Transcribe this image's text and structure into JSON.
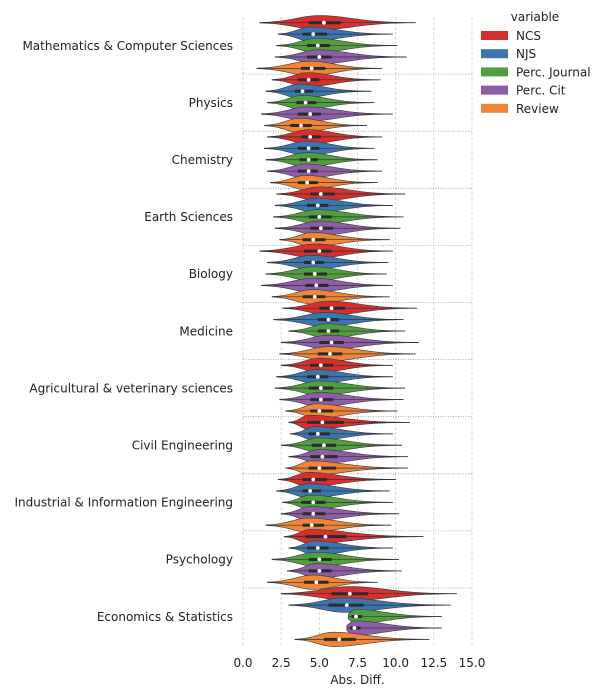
{
  "chart_data": {
    "type": "violin",
    "xlabel": "Abs. Diff.",
    "xlim": [
      0,
      15
    ],
    "xticks": [
      "0.0",
      "2.5",
      "5.0",
      "7.5",
      "10.0",
      "12.5",
      "15.0"
    ],
    "grid": "vertical dashed",
    "legend": {
      "title": "variable",
      "placement": "top-right",
      "entries": [
        "NCS",
        "NJS",
        "Perc. Journal",
        "Perc. Cit",
        "Review"
      ]
    },
    "series_colors": [
      "#d62f2f",
      "#3b76af",
      "#519e3e",
      "#8d5da7",
      "#ef8636"
    ],
    "categories": [
      "Mathematics & Computer Sciences",
      "Physics",
      "Chemistry",
      "Earth Sciences",
      "Biology",
      "Medicine",
      "Agricultural & veterinary sciences",
      "Civil Engineering",
      "Industrial & Information Engineering",
      "Psychology",
      "Economics & Statistics"
    ],
    "series": [
      {
        "name": "NCS",
        "values": [
          {
            "min": 1.1,
            "q1": 4.3,
            "median": 5.3,
            "q3": 6.4,
            "max": 11.3,
            "peak": 5.0
          },
          {
            "min": 1.9,
            "q1": 3.6,
            "median": 4.3,
            "q3": 5.0,
            "max": 9.0,
            "peak": 4.2
          },
          {
            "min": 1.6,
            "q1": 3.8,
            "median": 4.4,
            "q3": 5.1,
            "max": 9.1,
            "peak": 4.3
          },
          {
            "min": 2.2,
            "q1": 4.4,
            "median": 5.1,
            "q3": 6.0,
            "max": 10.6,
            "peak": 5.0
          },
          {
            "min": 1.1,
            "q1": 4.0,
            "median": 5.0,
            "q3": 5.8,
            "max": 9.8,
            "peak": 4.8
          },
          {
            "min": 2.6,
            "q1": 5.0,
            "median": 5.8,
            "q3": 6.7,
            "max": 11.4,
            "peak": 5.6
          },
          {
            "min": 2.5,
            "q1": 4.4,
            "median": 5.1,
            "q3": 5.9,
            "max": 9.8,
            "peak": 5.0
          },
          {
            "min": 3.0,
            "q1": 4.2,
            "median": 5.2,
            "q3": 6.6,
            "max": 10.9,
            "peak": 4.3
          },
          {
            "min": 2.3,
            "q1": 3.9,
            "median": 4.6,
            "q3": 5.5,
            "max": 10.0,
            "peak": 4.3
          },
          {
            "min": 2.7,
            "q1": 4.1,
            "median": 5.4,
            "q3": 6.8,
            "max": 11.8,
            "peak": 4.4
          },
          {
            "min": 2.5,
            "q1": 5.8,
            "median": 7.0,
            "q3": 8.2,
            "max": 14.0,
            "peak": 7.0
          }
        ]
      },
      {
        "name": "NJS",
        "values": [
          {
            "min": 2.3,
            "q1": 3.9,
            "median": 4.6,
            "q3": 5.5,
            "max": 9.8,
            "peak": 4.4
          },
          {
            "min": 1.5,
            "q1": 3.4,
            "median": 3.9,
            "q3": 4.6,
            "max": 8.4,
            "peak": 3.7
          },
          {
            "min": 1.4,
            "q1": 3.6,
            "median": 4.3,
            "q3": 5.0,
            "max": 8.6,
            "peak": 4.2
          },
          {
            "min": 2.1,
            "q1": 4.2,
            "median": 4.9,
            "q3": 5.6,
            "max": 9.8,
            "peak": 4.8
          },
          {
            "min": 1.6,
            "q1": 4.0,
            "median": 4.6,
            "q3": 5.3,
            "max": 9.5,
            "peak": 4.5
          },
          {
            "min": 2.0,
            "q1": 4.9,
            "median": 5.6,
            "q3": 6.3,
            "max": 10.5,
            "peak": 5.4
          },
          {
            "min": 2.2,
            "q1": 4.2,
            "median": 4.9,
            "q3": 5.6,
            "max": 9.8,
            "peak": 4.8
          },
          {
            "min": 3.1,
            "q1": 4.3,
            "median": 4.9,
            "q3": 5.7,
            "max": 9.8,
            "peak": 4.7
          },
          {
            "min": 2.2,
            "q1": 3.9,
            "median": 4.4,
            "q3": 5.1,
            "max": 9.6,
            "peak": 4.3
          },
          {
            "min": 3.0,
            "q1": 4.2,
            "median": 4.9,
            "q3": 5.6,
            "max": 9.8,
            "peak": 4.7
          },
          {
            "min": 3.0,
            "q1": 5.6,
            "median": 6.8,
            "q3": 7.9,
            "max": 13.6,
            "peak": 6.6
          }
        ]
      },
      {
        "name": "Perc. Journal",
        "values": [
          {
            "min": 2.2,
            "q1": 4.2,
            "median": 4.9,
            "q3": 5.7,
            "max": 10.1,
            "peak": 4.8
          },
          {
            "min": 1.6,
            "q1": 3.5,
            "median": 4.1,
            "q3": 4.8,
            "max": 8.6,
            "peak": 3.9
          },
          {
            "min": 1.5,
            "q1": 3.7,
            "median": 4.3,
            "q3": 4.9,
            "max": 8.8,
            "peak": 4.2
          },
          {
            "min": 2.0,
            "q1": 4.3,
            "median": 5.0,
            "q3": 5.8,
            "max": 10.5,
            "peak": 4.9
          },
          {
            "min": 1.5,
            "q1": 4.0,
            "median": 4.7,
            "q3": 5.5,
            "max": 9.4,
            "peak": 4.6
          },
          {
            "min": 3.0,
            "q1": 4.9,
            "median": 5.6,
            "q3": 6.3,
            "max": 10.6,
            "peak": 5.5
          },
          {
            "min": 2.1,
            "q1": 4.3,
            "median": 5.1,
            "q3": 5.9,
            "max": 10.6,
            "peak": 5.0
          },
          {
            "min": 2.5,
            "q1": 4.5,
            "median": 5.3,
            "q3": 6.1,
            "max": 10.4,
            "peak": 5.0
          },
          {
            "min": 2.6,
            "q1": 3.8,
            "median": 4.6,
            "q3": 5.4,
            "max": 9.8,
            "peak": 4.4
          },
          {
            "min": 1.9,
            "q1": 4.3,
            "median": 5.0,
            "q3": 5.8,
            "max": 10.2,
            "peak": 4.8
          },
          {
            "min": 6.9,
            "q1": 7.1,
            "median": 7.4,
            "q3": 7.8,
            "max": 13.0,
            "peak": 7.4
          }
        ]
      },
      {
        "name": "Perc. Cit",
        "values": [
          {
            "min": 2.1,
            "q1": 4.2,
            "median": 5.0,
            "q3": 5.8,
            "max": 10.7,
            "peak": 4.9
          },
          {
            "min": 1.2,
            "q1": 3.6,
            "median": 4.4,
            "q3": 5.1,
            "max": 9.8,
            "peak": 4.2
          },
          {
            "min": 1.6,
            "q1": 3.6,
            "median": 4.3,
            "q3": 4.9,
            "max": 9.1,
            "peak": 4.1
          },
          {
            "min": 2.1,
            "q1": 4.4,
            "median": 5.1,
            "q3": 5.9,
            "max": 10.3,
            "peak": 5.0
          },
          {
            "min": 1.2,
            "q1": 4.1,
            "median": 4.8,
            "q3": 5.6,
            "max": 9.8,
            "peak": 4.6
          },
          {
            "min": 2.5,
            "q1": 5.0,
            "median": 5.8,
            "q3": 6.6,
            "max": 11.5,
            "peak": 5.6
          },
          {
            "min": 2.4,
            "q1": 4.4,
            "median": 5.1,
            "q3": 5.9,
            "max": 10.5,
            "peak": 5.0
          },
          {
            "min": 3.0,
            "q1": 4.4,
            "median": 5.2,
            "q3": 6.2,
            "max": 10.8,
            "peak": 5.0
          },
          {
            "min": 2.5,
            "q1": 3.9,
            "median": 4.6,
            "q3": 5.4,
            "max": 10.2,
            "peak": 4.4
          },
          {
            "min": 2.9,
            "q1": 4.3,
            "median": 5.0,
            "q3": 5.8,
            "max": 10.4,
            "peak": 4.8
          },
          {
            "min": 6.8,
            "q1": 7.0,
            "median": 7.3,
            "q3": 7.7,
            "max": 13.0,
            "peak": 7.3
          }
        ]
      },
      {
        "name": "Review",
        "values": [
          {
            "min": 0.9,
            "q1": 3.8,
            "median": 4.5,
            "q3": 5.4,
            "max": 9.1,
            "peak": 4.4
          },
          {
            "min": 1.4,
            "q1": 3.1,
            "median": 3.8,
            "q3": 4.5,
            "max": 8.1,
            "peak": 3.7
          },
          {
            "min": 1.8,
            "q1": 3.6,
            "median": 4.2,
            "q3": 4.9,
            "max": 8.8,
            "peak": 4.1
          },
          {
            "min": 2.4,
            "q1": 3.9,
            "median": 4.6,
            "q3": 5.4,
            "max": 9.6,
            "peak": 4.5
          },
          {
            "min": 1.9,
            "q1": 3.9,
            "median": 4.7,
            "q3": 5.4,
            "max": 9.6,
            "peak": 4.5
          },
          {
            "min": 2.4,
            "q1": 4.9,
            "median": 5.7,
            "q3": 6.5,
            "max": 11.3,
            "peak": 5.6
          },
          {
            "min": 2.8,
            "q1": 4.4,
            "median": 5.0,
            "q3": 5.9,
            "max": 10.1,
            "peak": 4.8
          },
          {
            "min": 2.8,
            "q1": 4.3,
            "median": 5.0,
            "q3": 6.1,
            "max": 10.8,
            "peak": 4.4
          },
          {
            "min": 1.5,
            "q1": 3.9,
            "median": 4.5,
            "q3": 5.3,
            "max": 9.7,
            "peak": 4.3
          },
          {
            "min": 1.6,
            "q1": 4.0,
            "median": 4.8,
            "q3": 5.6,
            "max": 8.8,
            "peak": 4.6
          },
          {
            "min": 3.4,
            "q1": 5.3,
            "median": 6.3,
            "q3": 7.4,
            "max": 12.2,
            "peak": 5.9
          }
        ]
      }
    ]
  }
}
